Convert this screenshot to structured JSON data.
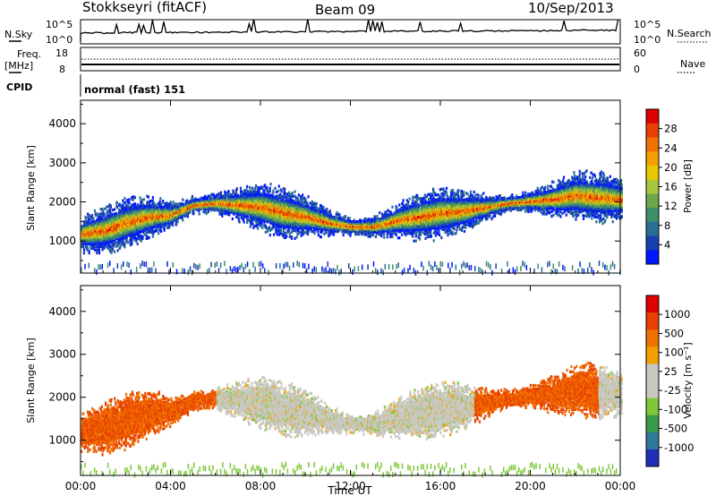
{
  "header": {
    "station": "Stokkseyri (fitACF)",
    "beam": "Beam 09",
    "date": "10/Sep/2013"
  },
  "params": {
    "nsky_label": "N.Sky",
    "nsky_ticks": [
      "10^5",
      "10^0"
    ],
    "nsearch_label": "N.Search",
    "nsearch_ticks": [
      "10^5",
      "10^0"
    ],
    "freq_label": "Freq.",
    "freq_unit": "[MHz]",
    "freq_ticks": [
      "18",
      "8"
    ],
    "nave_label": "Nave",
    "nave_ticks": [
      "60",
      "0"
    ],
    "cpid_label": "CPID",
    "cpid_text": "normal (fast) 151"
  },
  "chart_data": [
    {
      "type": "heatmap",
      "panel": "power",
      "ylabel": "Slant Range [km]",
      "ylim": [
        180,
        4600
      ],
      "y_ticks": [
        1000,
        2000,
        3000,
        4000
      ],
      "x_ticks": [
        "00:00",
        "04:00",
        "08:00",
        "12:00",
        "16:00",
        "20:00",
        "00:00"
      ],
      "xlim_hours": [
        0,
        24
      ],
      "colorbar": {
        "label": "Power [dB]",
        "ticks": [
          "28",
          "24",
          "20",
          "16",
          "12",
          "8",
          "4"
        ],
        "colors": [
          "#0018ff",
          "#1a3fb0",
          "#2a6e96",
          "#3c8f6a",
          "#6aa84a",
          "#a6c83c",
          "#e8c800",
          "#f3a000",
          "#f07000",
          "#e84000",
          "#e00000"
        ]
      },
      "echo_band_center_km": [
        [
          0,
          1200
        ],
        [
          1,
          1300
        ],
        [
          2,
          1500
        ],
        [
          3,
          1650
        ],
        [
          4,
          1700
        ],
        [
          5,
          1950
        ],
        [
          6,
          2000
        ],
        [
          7,
          1950
        ],
        [
          8,
          1900
        ],
        [
          9,
          1750
        ],
        [
          10,
          1650
        ],
        [
          11,
          1500
        ],
        [
          12,
          1400
        ],
        [
          13,
          1400
        ],
        [
          14,
          1550
        ],
        [
          15,
          1650
        ],
        [
          16,
          1750
        ],
        [
          17,
          1800
        ],
        [
          18,
          1900
        ],
        [
          19,
          2000
        ],
        [
          20,
          2050
        ],
        [
          21,
          2100
        ],
        [
          22,
          2200
        ],
        [
          23,
          2150
        ],
        [
          24,
          2100
        ]
      ]
    },
    {
      "type": "heatmap",
      "panel": "velocity",
      "ylabel": "Slant Range [km]",
      "ylim": [
        180,
        4600
      ],
      "y_ticks": [
        1000,
        2000,
        3000,
        4000
      ],
      "x_ticks": [
        "00:00",
        "04:00",
        "08:00",
        "12:00",
        "16:00",
        "20:00",
        "00:00"
      ],
      "xlabel": "Time UT",
      "xlim_hours": [
        0,
        24
      ],
      "colorbar": {
        "label": "Velocity [m s⁻¹]",
        "ticks": [
          "1000",
          "500",
          "100",
          "25",
          "-25",
          "-100",
          "-500",
          "-1000"
        ],
        "colors": [
          "#1f2fb8",
          "#2f7a9a",
          "#3c9b4a",
          "#7ec83a",
          "#c8c8c0",
          "#c8c8c0",
          "#f5a000",
          "#f07000",
          "#e84000",
          "#e00000"
        ]
      }
    }
  ]
}
